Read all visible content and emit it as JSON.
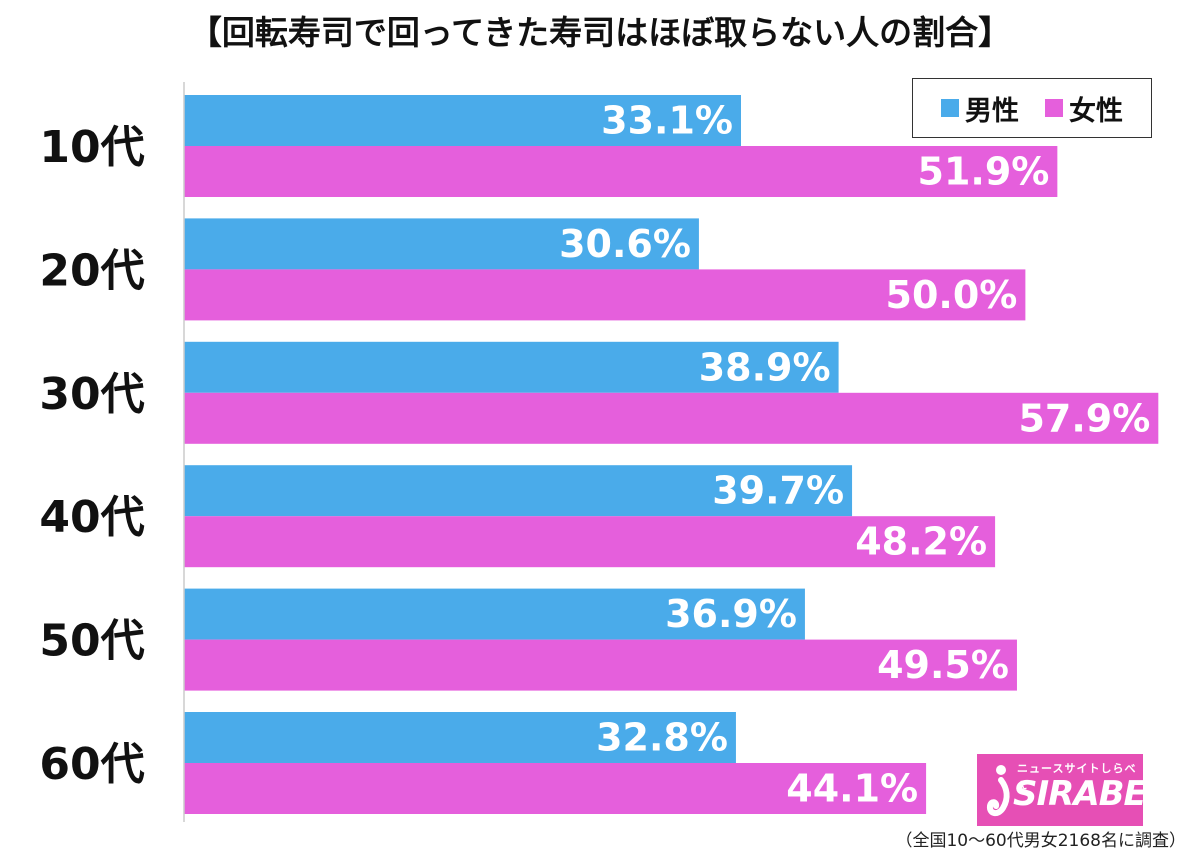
{
  "chart_data": {
    "type": "bar",
    "orientation": "horizontal",
    "title": "【回転寿司で回ってきた寿司はほぼ取らない人の割合】",
    "categories": [
      "10代",
      "20代",
      "30代",
      "40代",
      "50代",
      "60代"
    ],
    "series": [
      {
        "name": "男性",
        "color": "#4aabea",
        "values": [
          33.1,
          30.6,
          38.9,
          39.7,
          36.9,
          32.8
        ],
        "labels": [
          "33.1%",
          "30.6%",
          "38.9%",
          "39.7%",
          "36.9%",
          "32.8%"
        ]
      },
      {
        "name": "女性",
        "color": "#e55fdc",
        "values": [
          51.9,
          50.0,
          57.9,
          48.2,
          49.5,
          44.1
        ],
        "labels": [
          "51.9%",
          "50.0%",
          "57.9%",
          "48.2%",
          "49.5%",
          "44.1%"
        ]
      }
    ],
    "xlim": [
      0,
      58
    ],
    "grid": false,
    "legend_position": "top-right"
  },
  "logo": {
    "sub": "ニュースサイトしらべぇ",
    "main": "SIRABEE"
  },
  "footnote": "（全国10〜60代男女2168名に調査）"
}
